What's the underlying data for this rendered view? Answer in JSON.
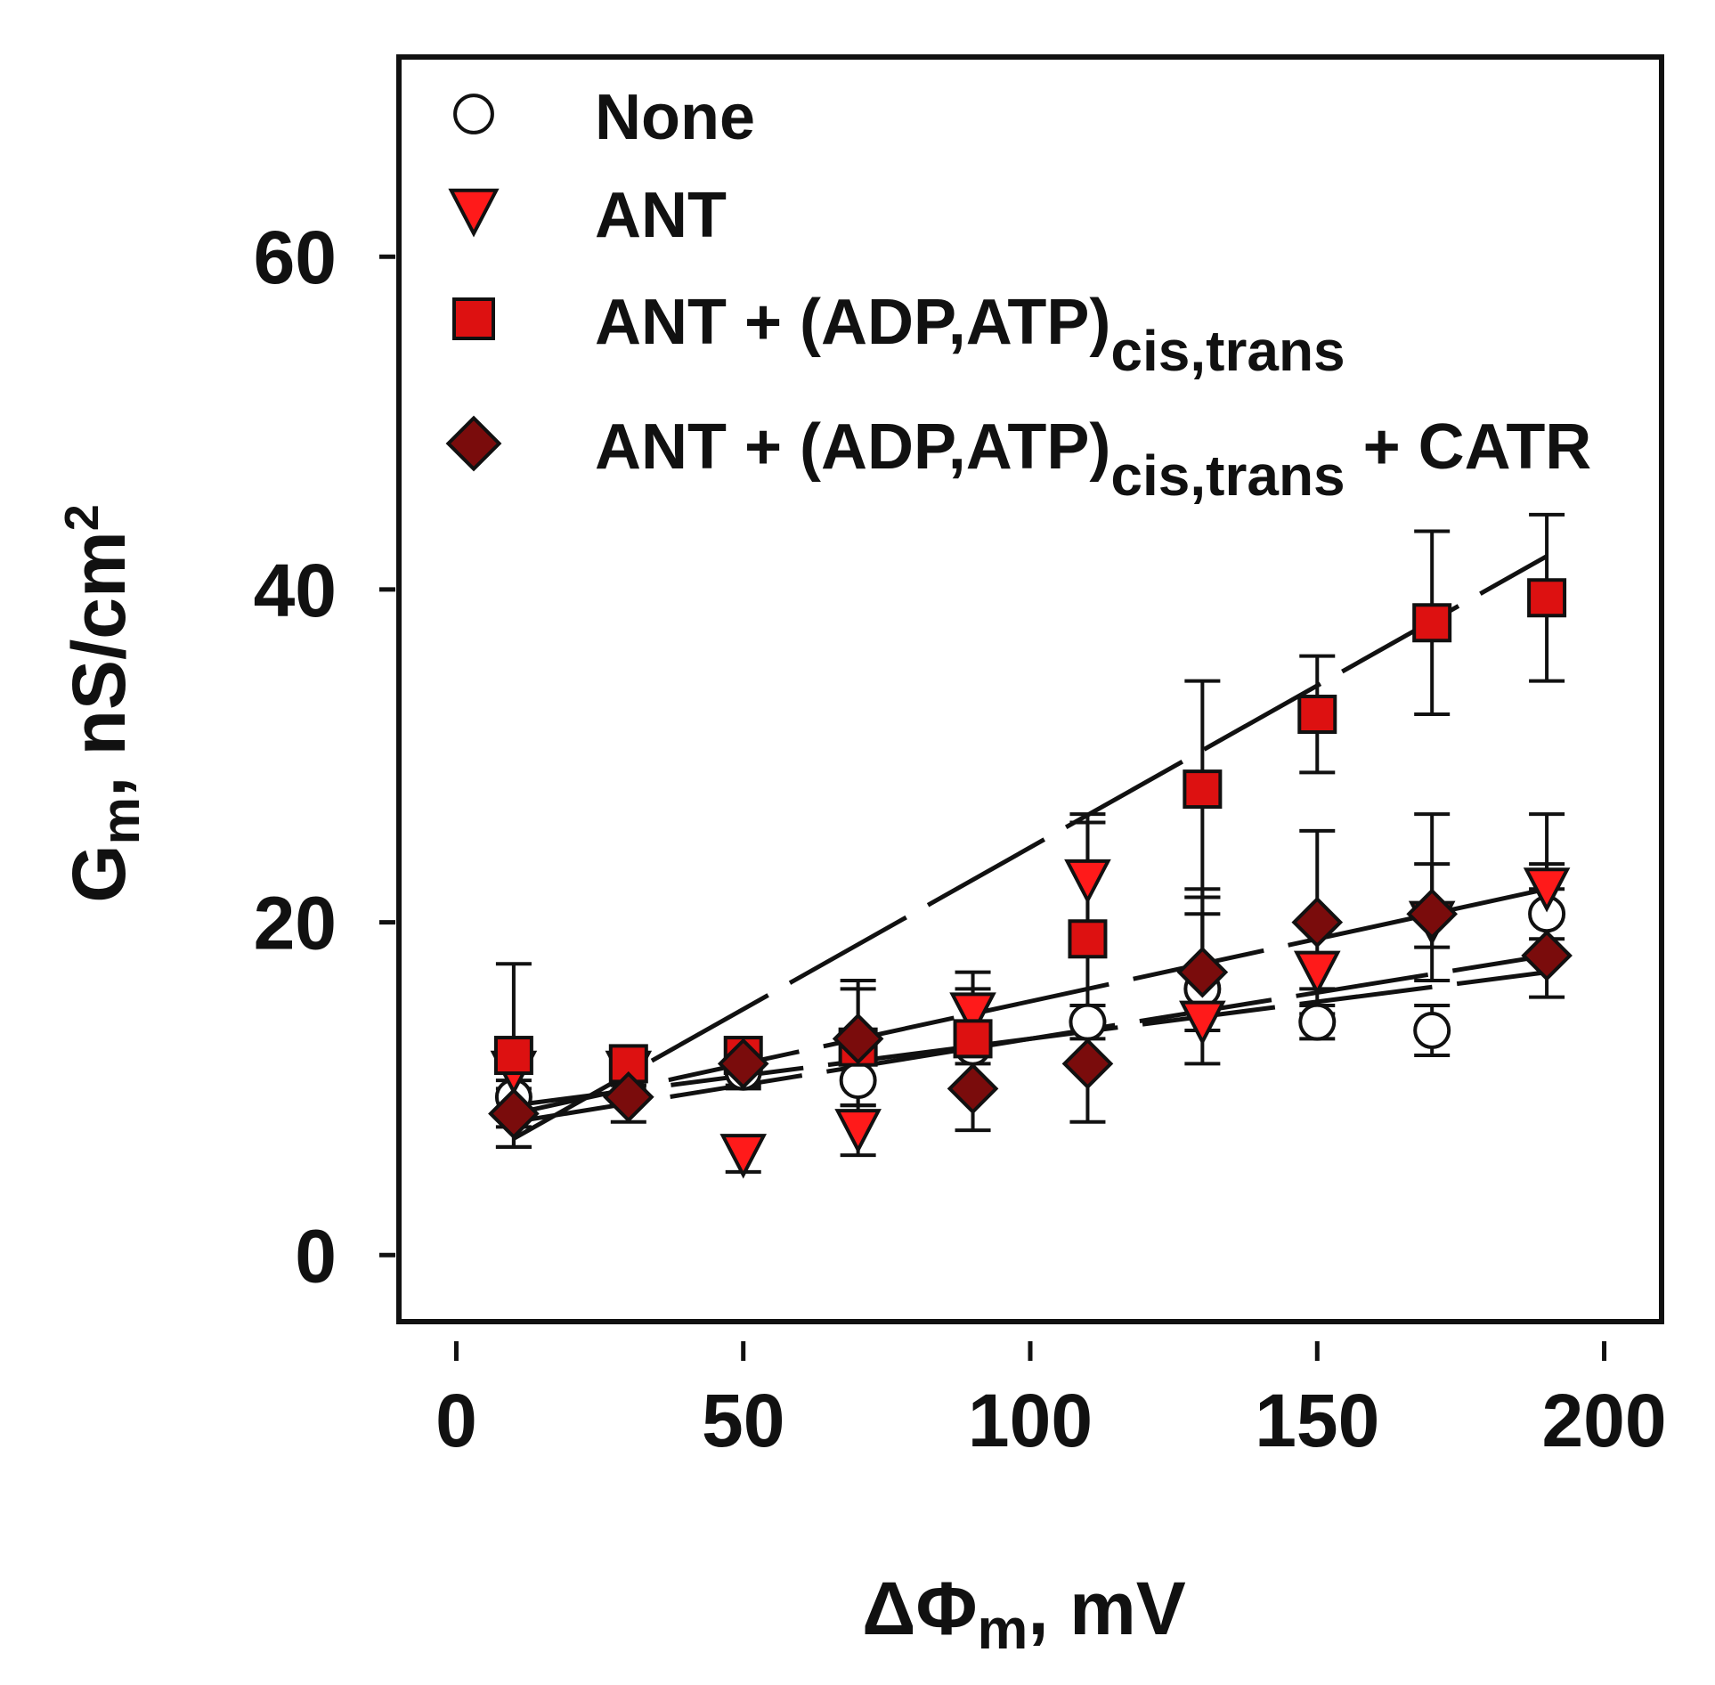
{
  "chart_data": {
    "type": "scatter",
    "xlabel": {
      "prefix": "ΔΦ",
      "sub": "m",
      "suffix": ", mV"
    },
    "ylabel": {
      "prefix": "G",
      "sub": "m",
      "mid": ", nS/cm",
      "sup": "2"
    },
    "xlim": [
      -10,
      210
    ],
    "ylim": [
      -4,
      72
    ],
    "xticks": [
      0,
      50,
      100,
      150,
      200
    ],
    "xtick_labels": [
      "0",
      "50",
      "100",
      "150",
      "200"
    ],
    "yticks": [
      0,
      20,
      40,
      60
    ],
    "ytick_labels": [
      "0",
      "20",
      "40",
      "60"
    ],
    "grid": false,
    "legend_position": "top-left",
    "x": [
      10,
      30,
      50,
      70,
      90,
      110,
      130,
      150,
      170,
      190
    ],
    "series": [
      {
        "name": "None",
        "legend": {
          "main": "None"
        },
        "marker": "circle",
        "fill": "#ffffff",
        "stroke": "#111111",
        "values": [
          9.5,
          11.0,
          11.0,
          10.5,
          12.5,
          14.0,
          16.0,
          14.0,
          13.5,
          20.5
        ],
        "err_up": [
          1.8,
          0.8,
          0.8,
          1.5,
          1.0,
          1.0,
          4.5,
          1.0,
          1.5,
          1.5
        ],
        "err_down": [
          1.8,
          0.8,
          0.8,
          1.5,
          1.0,
          1.0,
          2.5,
          1.0,
          1.5,
          1.5
        ],
        "fit": [
          9.0,
          17.0
        ]
      },
      {
        "name": "ANT",
        "legend": {
          "main": "ANT"
        },
        "marker": "triangle-down",
        "fill": "#ff1a1a",
        "stroke": "#111111",
        "values": [
          11.0,
          11.0,
          6.0,
          7.5,
          14.5,
          22.5,
          14.0,
          17.0,
          20.0,
          22.0
        ],
        "err_up": [
          1.0,
          0.8,
          1.0,
          1.5,
          2.5,
          3.5,
          7.5,
          1.0,
          3.5,
          1.5
        ],
        "err_down": [
          1.0,
          0.8,
          1.0,
          1.5,
          2.5,
          3.5,
          2.5,
          1.0,
          3.5,
          1.5
        ],
        "fit": [
          8.5,
          22.0
        ]
      },
      {
        "name": "ANT + (ADP,ATP)cis,trans",
        "legend": {
          "main": "ANT + (ADP,ATP)",
          "sub": "cis,trans"
        },
        "marker": "square",
        "fill": "#dd1111",
        "stroke": "#111111",
        "values": [
          12.0,
          11.5,
          12.0,
          12.5,
          13.0,
          19.0,
          28.0,
          32.5,
          38.0,
          39.5
        ],
        "err_up": [
          5.5,
          0.8,
          1.0,
          3.5,
          3.0,
          7.5,
          6.5,
          3.5,
          5.5,
          5.0
        ],
        "err_down": [
          5.5,
          0.8,
          1.0,
          3.5,
          3.0,
          7.5,
          6.5,
          3.5,
          5.5,
          5.0
        ],
        "fit": [
          7.0,
          42.0
        ]
      },
      {
        "name": "ANT + (ADP,ATP)cis,trans + CATR",
        "legend": {
          "main": "ANT + (ADP,ATP)",
          "sub": "cis,trans",
          "tail": " + CATR"
        },
        "marker": "diamond",
        "fill": "#7a0c0c",
        "stroke": "#111111",
        "values": [
          8.5,
          9.5,
          11.5,
          13.0,
          10.0,
          11.5,
          17.0,
          20.0,
          20.5,
          18.0
        ],
        "err_up": [
          2.0,
          1.5,
          1.5,
          3.5,
          2.5,
          3.5,
          5.0,
          5.5,
          6.0,
          8.5
        ],
        "err_down": [
          2.0,
          1.5,
          1.5,
          1.0,
          2.5,
          3.5,
          2.0,
          5.5,
          2.0,
          2.5
        ],
        "fit": [
          8.0,
          18.0
        ]
      }
    ]
  }
}
